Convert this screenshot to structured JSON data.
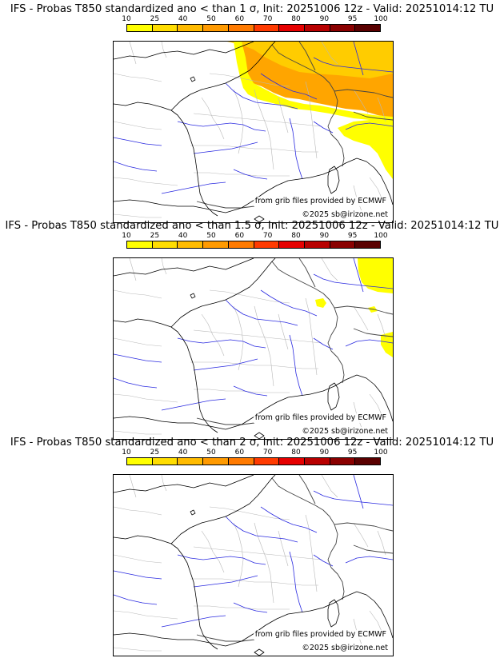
{
  "scale": {
    "ticks": [
      "10",
      "25",
      "40",
      "50",
      "60",
      "70",
      "80",
      "90",
      "95",
      "100"
    ],
    "colors": [
      "#ffff00",
      "#ffdd00",
      "#ffbb00",
      "#ff9a00",
      "#ff7a00",
      "#ff3a00",
      "#e60000",
      "#b80000",
      "#8a0000",
      "#5a0000"
    ]
  },
  "panels": [
    {
      "title": "IFS - Probas T850  standardized ano < than 1 σ, Init: 20251006 12z - Valid: 20251014:12 TU",
      "source": "from grib files provided by ECMWF",
      "copyright": "©2025 sb@irizone.net",
      "colors": {
        "low": "#ffff00",
        "mid": "#ffcc00",
        "high": "#ffa500"
      }
    },
    {
      "title": "IFS - Probas T850  standardized ano < than 1.5 σ, Init: 20251006 12z - Valid: 20251014:12 TU",
      "source": "from grib files provided by ECMWF",
      "copyright": "©2025 sb@irizone.net",
      "colors": {
        "low": "#ffff00",
        "mid": "#ffcc00",
        "high": "#ffa500"
      }
    },
    {
      "title": "IFS - Probas T850  standardized ano < than 2 σ, Init: 20251006 12z - Valid: 20251014:12 TU",
      "source": "from grib files provided by ECMWF",
      "copyright": "©2025 sb@irizone.net",
      "colors": {
        "low": "#ffff00",
        "mid": "#ffcc00",
        "high": "#ffa500"
      }
    }
  ]
}
